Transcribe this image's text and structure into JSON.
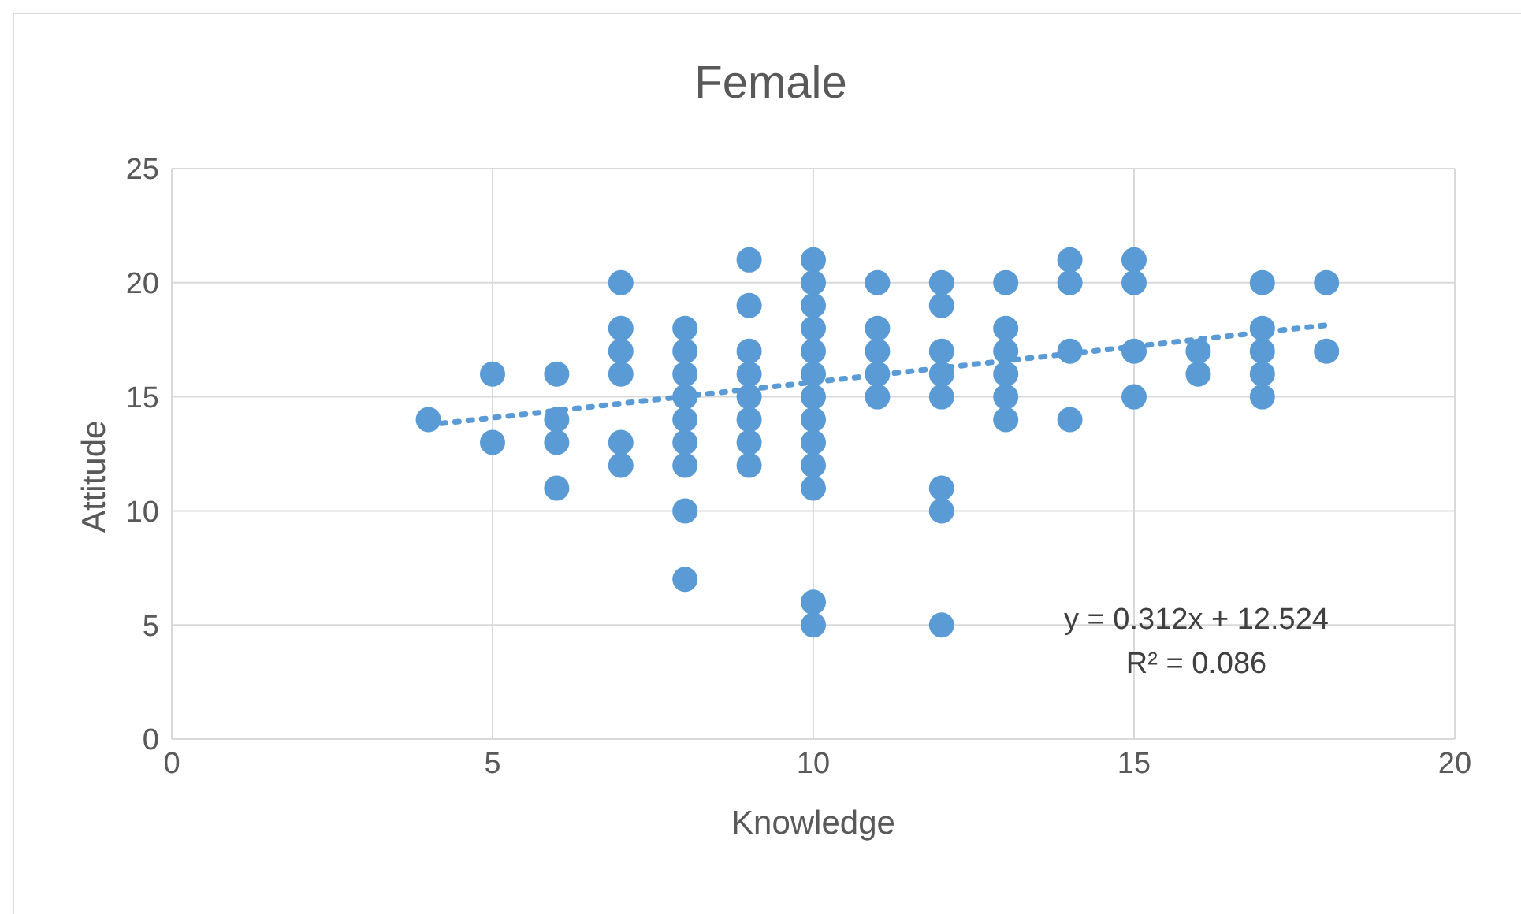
{
  "chart_data": {
    "type": "scatter",
    "title": "Female",
    "xlabel": "Knowledge",
    "ylabel": "Attitude",
    "xlim": [
      0,
      20
    ],
    "xticks": [
      0,
      5,
      10,
      15,
      20
    ],
    "ylim": [
      0,
      25
    ],
    "yticks": [
      0,
      5,
      10,
      15,
      20,
      25
    ],
    "grid": true,
    "marker": "circle",
    "annotations": [
      "y = 0.312x + 12.524",
      "R² = 0.086"
    ],
    "series": [
      {
        "color": "#5b9bd5",
        "x": [
          4,
          5,
          5,
          6,
          6,
          6,
          6,
          7,
          7,
          7,
          7,
          7,
          7,
          8,
          8,
          8,
          8,
          8,
          8,
          8,
          8,
          8,
          9,
          9,
          9,
          9,
          9,
          9,
          9,
          9,
          10,
          10,
          10,
          10,
          10,
          10,
          10,
          10,
          10,
          10,
          10,
          10,
          10,
          11,
          11,
          11,
          11,
          11,
          12,
          12,
          12,
          12,
          12,
          12,
          12,
          12,
          13,
          13,
          13,
          13,
          13,
          13,
          14,
          14,
          14,
          14,
          15,
          15,
          15,
          15,
          16,
          16,
          17,
          17,
          17,
          17,
          17,
          18,
          18
        ],
        "values": [
          14,
          16,
          13,
          16,
          14,
          13,
          11,
          20,
          18,
          17,
          16,
          13,
          12,
          18,
          17,
          16,
          15,
          14,
          13,
          12,
          10,
          7,
          21,
          19,
          17,
          16,
          15,
          14,
          13,
          12,
          21,
          20,
          19,
          18,
          17,
          16,
          15,
          14,
          13,
          12,
          11,
          6,
          5,
          20,
          18,
          17,
          16,
          15,
          20,
          19,
          17,
          16,
          15,
          11,
          10,
          5,
          20,
          18,
          17,
          16,
          15,
          14,
          21,
          20,
          17,
          14,
          21,
          20,
          17,
          15,
          17,
          16,
          20,
          18,
          17,
          16,
          15,
          20,
          17
        ]
      },
      {
        "type": "line",
        "color": "#5b9bd5",
        "line_style": "dotted",
        "marker": "none",
        "x": [
          4,
          18
        ],
        "values": [
          13.77,
          18.14
        ]
      }
    ]
  }
}
